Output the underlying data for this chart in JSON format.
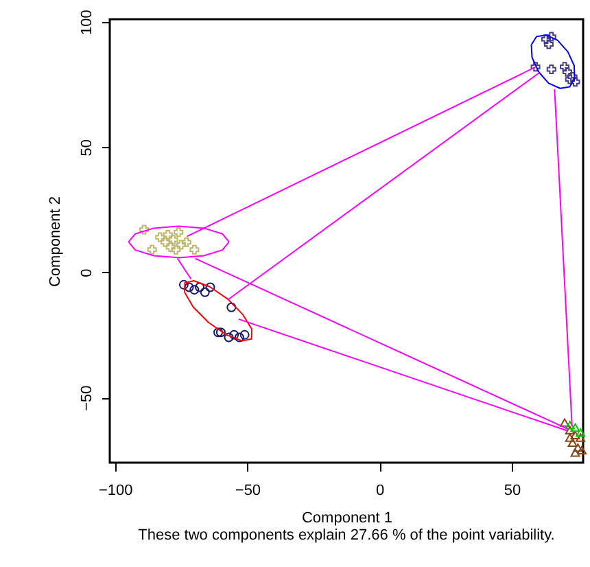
{
  "chart_data": {
    "type": "scatter",
    "xlabel": "Component 1",
    "ylabel": "Component 2",
    "annotations": [
      "These two components explain 27.66 % of the point variability."
    ],
    "xlim": [
      -102,
      77
    ],
    "ylim": [
      -76,
      101
    ],
    "xticks": [
      -100,
      -50,
      0,
      50
    ],
    "yticks": [
      -50,
      0,
      50,
      100
    ],
    "grid": false,
    "series": [
      {
        "type": "scatter",
        "marker": "cross",
        "color": "#bdb76b",
        "x": [
          -89,
          -86,
          -83,
          -81,
          -80,
          -79,
          -78,
          -77,
          -76,
          -75,
          -73,
          -70
        ],
        "values": [
          17,
          9,
          14,
          12,
          15,
          10,
          13,
          9,
          16,
          11,
          12,
          9
        ]
      },
      {
        "type": "scatter",
        "marker": "circle",
        "color": "#191970",
        "x": [
          -74,
          -72,
          -70,
          -68,
          -66,
          -64,
          -56,
          -61,
          -60,
          -57,
          -55,
          -53,
          -51
        ],
        "values": [
          -5,
          -6,
          -7,
          -6,
          -8,
          -6,
          -14,
          -24,
          -24,
          -26,
          -25,
          -26,
          -25
        ]
      },
      {
        "type": "scatter",
        "marker": "cross",
        "color": "#483d8b",
        "x": [
          63,
          65,
          64,
          59,
          65,
          70,
          71,
          73,
          74,
          72
        ],
        "values": [
          93,
          94,
          91,
          82,
          81,
          82,
          80,
          78,
          76,
          77
        ]
      },
      {
        "type": "scatter",
        "marker": "triangle",
        "color": "#8b4513",
        "x": [
          70,
          72,
          74,
          73,
          75,
          76,
          74,
          76.5,
          72
        ],
        "values": [
          -60,
          -63,
          -65,
          -68,
          -70,
          -66,
          -72,
          -71,
          -66
        ]
      },
      {
        "type": "scatter",
        "marker": "triangle",
        "color": "#00cd00",
        "x": [
          72,
          74,
          76
        ],
        "values": [
          -61,
          -62,
          -64
        ]
      },
      {
        "type": "line",
        "color": "#ff00ff",
        "x": [
          -94.9,
          -92.4,
          -85.4,
          -75.9,
          -66.4,
          -59.4,
          -56.9
        ],
        "values": [
          12.1,
          15.3,
          17.6,
          18.4,
          17.6,
          15.3,
          12.1
        ]
      },
      {
        "type": "line",
        "color": "#ff00ff",
        "x": [
          -94.9,
          -92.4,
          -85.4,
          -75.9,
          -66.4,
          -59.4,
          -56.9
        ],
        "values": [
          12.1,
          8.9,
          6.6,
          5.8,
          6.6,
          8.9,
          12.1
        ]
      },
      {
        "type": "line",
        "color": "#ff0000",
        "x": [
          -73.7,
          -73.6,
          -70.2,
          -64.2,
          -57.4,
          -51.6,
          -48.3
        ],
        "values": [
          -8.0,
          -4.2,
          -3.4,
          -5.8,
          -10.7,
          -17.0,
          -22.7
        ]
      },
      {
        "type": "line",
        "color": "#ff0000",
        "x": [
          -73.7,
          -70.5,
          -64.6,
          -57.8,
          -51.9,
          -48.4,
          -48.3
        ],
        "values": [
          -8.0,
          -13.8,
          -20.1,
          -25.0,
          -27.4,
          -26.6,
          -22.7
        ]
      },
      {
        "type": "line",
        "color": "#0000ff",
        "x": [
          57.4,
          59.4,
          63.0,
          67.3,
          71.2,
          73.6,
          73.8
        ],
        "values": [
          90.8,
          94.1,
          94.7,
          92.6,
          88.0,
          82.5,
          77.4
        ]
      },
      {
        "type": "line",
        "color": "#0000ff",
        "x": [
          57.4,
          57.7,
          60.1,
          63.9,
          68.3,
          71.9,
          73.8
        ],
        "values": [
          90.8,
          85.7,
          80.1,
          75.5,
          73.4,
          74.0,
          77.4
        ]
      },
      {
        "type": "line",
        "color": "#ff00ff",
        "x": [
          -72.8,
          59
        ],
        "values": [
          14.3,
          81.9
        ]
      },
      {
        "type": "line",
        "color": "#ff00ff",
        "x": [
          -57.4,
          60.5
        ],
        "values": [
          -11,
          79.7
        ]
      },
      {
        "type": "line",
        "color": "#ff00ff",
        "x": [
          -69.7,
          71.3
        ],
        "values": [
          5.5,
          -62.6
        ]
      },
      {
        "type": "line",
        "color": "#ff00ff",
        "x": [
          -53.3,
          70.8
        ],
        "values": [
          -18.7,
          -63.2
        ]
      },
      {
        "type": "line",
        "color": "#ff00ff",
        "x": [
          66.2,
          72.8
        ],
        "values": [
          73.1,
          -61.5
        ]
      },
      {
        "type": "line",
        "color": "#ff00ff",
        "x": [
          -76.4,
          -71.3
        ],
        "values": [
          5.5,
          -2.7
        ]
      }
    ]
  }
}
